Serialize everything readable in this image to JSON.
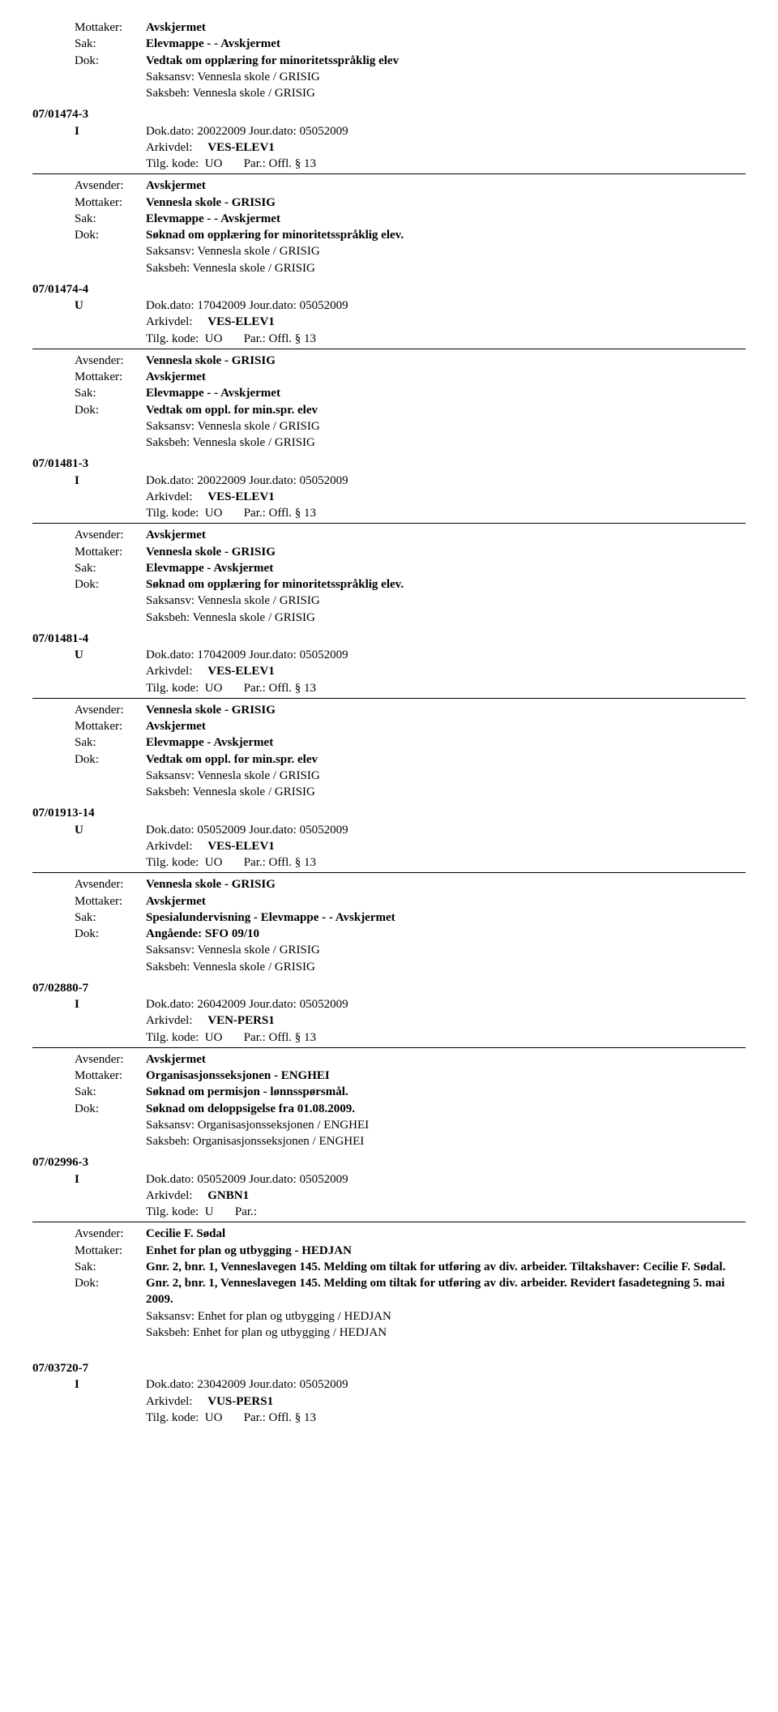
{
  "labels": {
    "mottaker": "Mottaker:",
    "avsender": "Avsender:",
    "sak": "Sak:",
    "dok": "Dok:",
    "arkivdel": "Arkivdel:",
    "tilgkode": "Tilg. kode:",
    "par": "Par.:",
    "saksansv": "Saksansv:",
    "saksbeh": "Saksbeh:"
  },
  "common": {
    "avskjermet": "Avskjermet",
    "vennesla_grisig": "Vennesla skole - GRISIG",
    "vennesla_slash": "Vennesla skole / GRISIG",
    "org_enghei": "Organisasjonsseksjonen - ENGHEI",
    "org_enghei_slash": "Organisasjonsseksjonen / ENGHEI",
    "plan_hedjan": "Enhet for plan og utbygging - HEDJAN",
    "plan_hedjan_slash": "Enhet for plan og utbygging / HEDJAN",
    "ves_elev1": "VES-ELEV1",
    "ven_pers1": "VEN-PERS1",
    "gnbn1": "GNBN1",
    "vus_pers1": "VUS-PERS1",
    "uo": "UO",
    "u": "U",
    "offl13": "Offl. § 13"
  },
  "entries": [
    {
      "pre": [
        {
          "lbl": "mottaker",
          "val": "Avskjermet",
          "bold": true
        }
      ],
      "sak": "Elevmappe - - Avskjermet",
      "dok": "Vedtak om opplæring for minoritetsspråklig elev",
      "saksansv": "Vennesla skole / GRISIG",
      "saksbeh": "Vennesla skole / GRISIG"
    },
    {
      "caseno": "07/01474-3",
      "rtype": "I",
      "dokdato": "Dok.dato: 20022009   Jour.dato:    05052009",
      "arkivdel": "VES-ELEV1",
      "tilg": "UO",
      "par": "Offl. § 13",
      "avsender": "Avskjermet",
      "mottaker": "Vennesla skole - GRISIG",
      "sak": "Elevmappe - - Avskjermet",
      "dok": "Søknad om opplæring for minoritetsspråklig elev.",
      "saksansv": "Vennesla skole / GRISIG",
      "saksbeh": "Vennesla skole / GRISIG"
    },
    {
      "caseno": "07/01474-4",
      "rtype": "U",
      "dokdato": "Dok.dato: 17042009   Jour.dato:    05052009",
      "arkivdel": "VES-ELEV1",
      "tilg": "UO",
      "par": "Offl. § 13",
      "avsender": "Vennesla skole - GRISIG",
      "mottaker": "Avskjermet",
      "sak": "Elevmappe - - Avskjermet",
      "dok": "Vedtak om oppl. for min.spr. elev",
      "saksansv": "Vennesla skole / GRISIG",
      "saksbeh": "Vennesla skole / GRISIG"
    },
    {
      "caseno": "07/01481-3",
      "rtype": "I",
      "dokdato": "Dok.dato: 20022009   Jour.dato:    05052009",
      "arkivdel": "VES-ELEV1",
      "tilg": "UO",
      "par": "Offl. § 13",
      "avsender": "Avskjermet",
      "mottaker": "Vennesla skole - GRISIG",
      "sak": "Elevmappe - Avskjermet",
      "dok": "Søknad om opplæring for minoritetsspråklig elev.",
      "saksansv": "Vennesla skole / GRISIG",
      "saksbeh": "Vennesla skole / GRISIG"
    },
    {
      "caseno": "07/01481-4",
      "rtype": "U",
      "dokdato": "Dok.dato: 17042009   Jour.dato:    05052009",
      "arkivdel": "VES-ELEV1",
      "tilg": "UO",
      "par": "Offl. § 13",
      "avsender": "Vennesla skole - GRISIG",
      "mottaker": "Avskjermet",
      "sak": "Elevmappe - Avskjermet",
      "dok": "Vedtak om oppl. for min.spr. elev",
      "saksansv": "Vennesla skole / GRISIG",
      "saksbeh": "Vennesla skole / GRISIG"
    },
    {
      "caseno": "07/01913-14",
      "rtype": "U",
      "dokdato": "Dok.dato: 05052009   Jour.dato:    05052009",
      "arkivdel": "VES-ELEV1",
      "tilg": "UO",
      "par": "Offl. § 13",
      "avsender": "Vennesla skole - GRISIG",
      "mottaker": "Avskjermet",
      "sak": "Spesialundervisning - Elevmappe - - Avskjermet",
      "dok": "Angående: SFO 09/10",
      "saksansv": "Vennesla skole / GRISIG",
      "saksbeh": "Vennesla skole / GRISIG"
    },
    {
      "caseno": "07/02880-7",
      "rtype": "I",
      "dokdato": "Dok.dato: 26042009   Jour.dato:    05052009",
      "arkivdel": "VEN-PERS1",
      "tilg": "UO",
      "par": "Offl. § 13",
      "avsender": "Avskjermet",
      "mottaker": "Organisasjonsseksjonen - ENGHEI",
      "sak": "Søknad om permisjon - lønnsspørsmål.",
      "dok": "Søknad om deloppsigelse fra 01.08.2009.",
      "saksansv": "Organisasjonsseksjonen / ENGHEI",
      "saksbeh": "Organisasjonsseksjonen / ENGHEI"
    },
    {
      "caseno": "07/02996-3",
      "rtype": "I",
      "dokdato": "Dok.dato: 05052009   Jour.dato:    05052009",
      "arkivdel": "GNBN1",
      "tilg": "U",
      "par": "",
      "avsender": "Cecilie F. Sødal",
      "mottaker": "Enhet for plan og utbygging - HEDJAN",
      "sak": "Gnr. 2, bnr. 1, Venneslavegen 145. Melding om tiltak for utføring av div. arbeider. Tiltakshaver: Cecilie F. Sødal.",
      "dok": "Gnr. 2, bnr. 1, Venneslavegen 145. Melding om tiltak for utføring av div. arbeider. Revidert fasadetegning 5. mai 2009.",
      "saksansv": "Enhet for plan og utbygging / HEDJAN",
      "saksbeh": "Enhet for plan og utbygging / HEDJAN"
    },
    {
      "caseno": "07/03720-7",
      "rtype": "I",
      "dokdato": "Dok.dato: 23042009   Jour.dato:    05052009",
      "arkivdel": "VUS-PERS1",
      "tilg": "UO",
      "par": "Offl. § 13",
      "trailing": true
    }
  ]
}
